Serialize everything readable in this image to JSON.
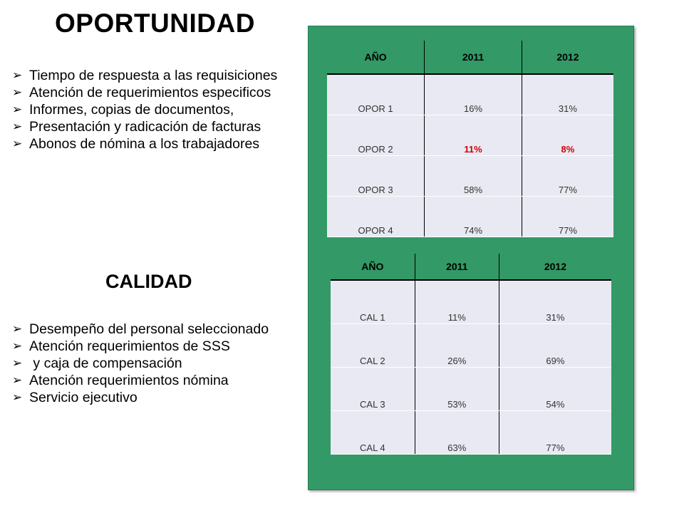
{
  "oportunidad": {
    "title": "OPORTUNIDAD",
    "bullets": [
      "Tiempo de respuesta a las requisiciones",
      "Atención de requerimientos especificos",
      "Informes, copias de documentos,",
      "Presentación y radicación de facturas",
      "Abonos de nómina a los trabajadores"
    ],
    "table": {
      "headers": [
        "AÑO",
        "2011",
        "2012"
      ],
      "rows": [
        [
          "OPOR 1",
          "16%",
          "31%"
        ],
        [
          "OPOR 2",
          "11%",
          "8%"
        ],
        [
          "OPOR 3",
          "58%",
          "77%"
        ],
        [
          "OPOR 4",
          "74%",
          "77%"
        ]
      ],
      "highlight_color": "#cc0000"
    }
  },
  "calidad": {
    "title": "CALIDAD",
    "bullets": [
      "Desempeño del personal seleccionado",
      "Atención requerimientos de SSS",
      " y caja de compensación",
      "Atención requerimientos nómina",
      "Servicio ejecutivo"
    ],
    "table": {
      "headers": [
        "AÑO",
        "2011",
        "2012"
      ],
      "rows": [
        [
          "CAL 1",
          "11%",
          "31%"
        ],
        [
          "CAL 2",
          "26%",
          "69%"
        ],
        [
          "CAL 3",
          "53%",
          "54%"
        ],
        [
          "CAL 4",
          "63%",
          "77%"
        ]
      ]
    }
  },
  "colors": {
    "panel_green": "#339966",
    "cell_background": "#e8e9f2"
  },
  "bullet_icon": "arrow-bullet-icon"
}
